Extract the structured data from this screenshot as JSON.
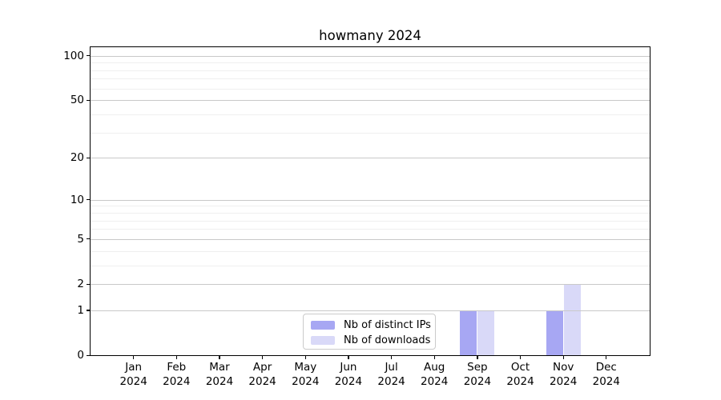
{
  "chart_data": {
    "type": "bar",
    "title": "howmany 2024",
    "categories": [
      "Jan",
      "Feb",
      "Mar",
      "Apr",
      "May",
      "Jun",
      "Jul",
      "Aug",
      "Sep",
      "Oct",
      "Nov",
      "Dec"
    ],
    "year_label": "2024",
    "series": [
      {
        "key": "distinct-ips",
        "name": "Nb of distinct IPs",
        "color": "#a7a7f3",
        "values": [
          0,
          0,
          0,
          0,
          0,
          0,
          0,
          0,
          1,
          0,
          1,
          0
        ]
      },
      {
        "key": "downloads",
        "name": "Nb of downloads",
        "color": "#d9d9f8",
        "values": [
          0,
          0,
          0,
          0,
          0,
          0,
          0,
          0,
          1,
          0,
          2,
          0
        ]
      }
    ],
    "xlabel": "",
    "ylabel": "",
    "yscale": "log1p",
    "ylim": [
      0,
      115
    ],
    "yticks": [
      0,
      1,
      2,
      5,
      10,
      20,
      50,
      100
    ],
    "yticks_minor": [
      3,
      4,
      6,
      7,
      8,
      9,
      30,
      40,
      60,
      70,
      80,
      90
    ],
    "grid": true,
    "legend_position": "lower center",
    "colors": {
      "grid_major": "#c9c9c9",
      "grid_minor": "#efefef",
      "axis": "#000000",
      "text": "#000000",
      "background": "#ffffff"
    }
  }
}
